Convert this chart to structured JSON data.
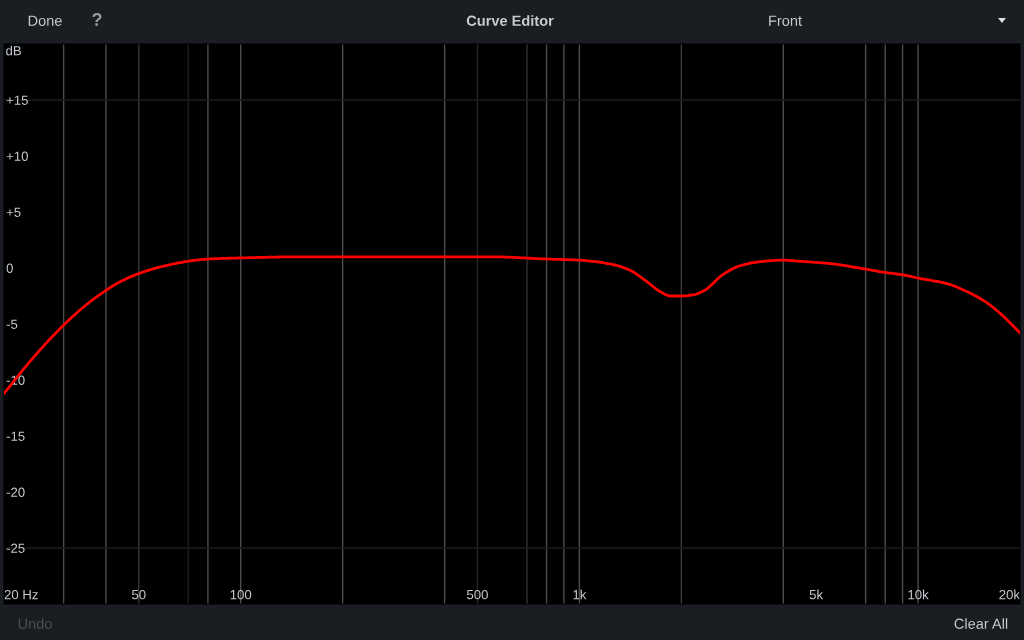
{
  "chart_data": {
    "type": "line",
    "title": "Curve Editor",
    "ylabel": "dB",
    "annotations": [
      "Done",
      "?",
      "Front",
      "Undo",
      "Clear All"
    ],
    "x": [
      20,
      24.4,
      30,
      34.3,
      40,
      43,
      50,
      58,
      70,
      80,
      100,
      150,
      200,
      300,
      400,
      550,
      800,
      1000,
      1260,
      1410,
      1580,
      1730,
      1860,
      2000,
      2170,
      2340,
      2650,
      2980,
      3500,
      4000,
      4480,
      5480,
      7000,
      8000,
      9000,
      10000,
      12200,
      13700,
      15600,
      17400,
      20000
    ],
    "series": [
      {
        "color": "#ff0000",
        "values": [
          -11.2,
          -8.0,
          -5.1,
          -3.5,
          -2.0,
          -1.4,
          -0.5,
          0.1,
          0.6,
          0.8,
          0.9,
          1.0,
          1.0,
          1.0,
          1.0,
          1.0,
          0.8,
          0.7,
          0.3,
          -0.2,
          -1.2,
          -2.1,
          -2.5,
          -2.5,
          -2.4,
          -2.0,
          -0.6,
          0.2,
          0.6,
          0.7,
          0.6,
          0.4,
          -0.1,
          -0.4,
          -0.6,
          -0.9,
          -1.4,
          -2.0,
          -2.9,
          -4.0,
          -5.8
        ]
      }
    ],
    "log": "x",
    "xlim": [
      20,
      20000
    ],
    "xticks": [
      {
        "value": 20,
        "label": "20 Hz"
      },
      50,
      100,
      500,
      {
        "value": 1000,
        "label": "1k"
      },
      {
        "value": 5000,
        "label": "5k"
      },
      {
        "value": 10000,
        "label": "10k"
      },
      {
        "value": 20000,
        "label": "20k"
      }
    ],
    "ylim": [
      -30,
      20
    ],
    "yticks": [
      {
        "value": 15,
        "label": "+15"
      },
      {
        "value": 10,
        "label": "+10"
      },
      {
        "value": 5,
        "label": "+5"
      },
      0,
      -5,
      -10,
      -15,
      -20,
      -25
    ],
    "ref_lines": [
      {
        "axis": "x",
        "value": 30,
        "color": "#4d4d4d"
      },
      {
        "axis": "x",
        "value": 40,
        "color": "#4d4d4d"
      },
      {
        "axis": "x",
        "value": 50,
        "color": "#3a3a3a"
      },
      {
        "axis": "x",
        "value": 70,
        "color": "#1f1f1f"
      },
      {
        "axis": "x",
        "value": 80,
        "color": "#4d4d4d"
      },
      {
        "axis": "x",
        "value": 100,
        "color": "#4d4d4d"
      },
      {
        "axis": "x",
        "value": 200,
        "color": "#4d4d4d"
      },
      {
        "axis": "x",
        "value": 400,
        "color": "#4d4d4d"
      },
      {
        "axis": "x",
        "value": 500,
        "color": "#262626"
      },
      {
        "axis": "x",
        "value": 700,
        "color": "#333333"
      },
      {
        "axis": "x",
        "value": 800,
        "color": "#4d4d4d"
      },
      {
        "axis": "x",
        "value": 900,
        "color": "#4d4d4d"
      },
      {
        "axis": "x",
        "value": 1000,
        "color": "#4d4d4d"
      },
      {
        "axis": "x",
        "value": 2000,
        "color": "#3a3a3a"
      },
      {
        "axis": "x",
        "value": 4000,
        "color": "#4d4d4d"
      },
      {
        "axis": "x",
        "value": 7000,
        "color": "#4d4d4d"
      },
      {
        "axis": "x",
        "value": 8000,
        "color": "#4d4d4d"
      },
      {
        "axis": "x",
        "value": 9000,
        "color": "#4d4d4d"
      },
      {
        "axis": "x",
        "value": 10000,
        "color": "#4d4d4d"
      },
      {
        "axis": "y",
        "value": 15,
        "color": "#1c1c1c"
      },
      {
        "axis": "y",
        "value": -25,
        "color": "#1c1c1c"
      }
    ]
  }
}
